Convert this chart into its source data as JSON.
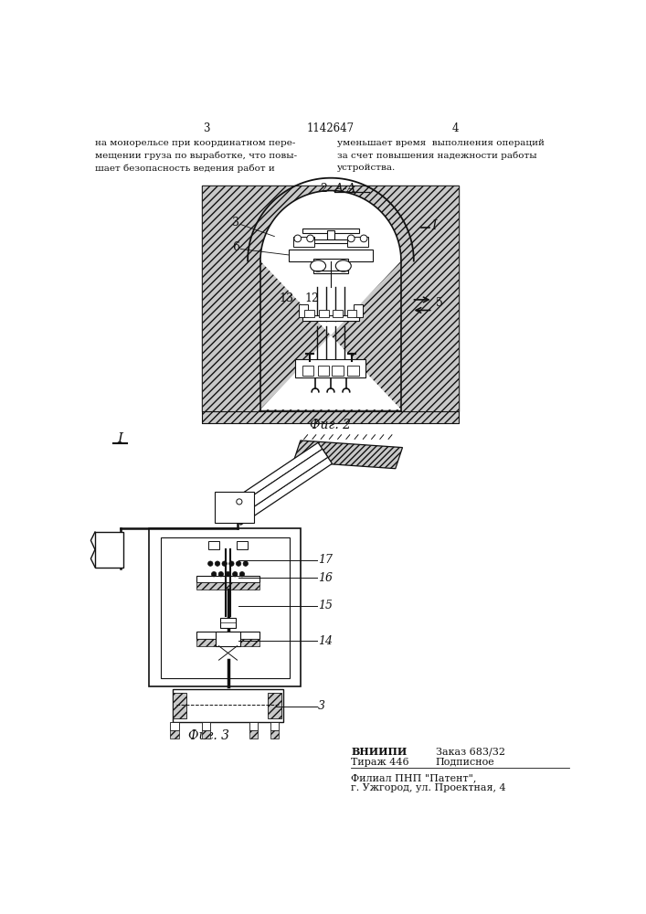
{
  "bg_color": "#ffffff",
  "page_width": 7.07,
  "page_height": 10.0,
  "header_num_left": "3",
  "header_num_center": "1142647",
  "header_num_right": "4",
  "header_left": "на монорельсе при координатном пере-\nмещении груза по выработке, что повы-\nшает безопасность ведения работ и",
  "header_right": "уменьшает время  выполнения операций\nза счет повышения надежности работы\nустройства.",
  "fig2_caption": "Фиг. 2",
  "fig3_caption": "Фиг. 3",
  "vniipi_line1a": "ВНИИПИ",
  "vniipi_line1b": "Заказ 683/32",
  "vniipi_line2a": "Тираж 446",
  "vniipi_line2b": "Подписное",
  "filial_line1": "Филиал ПНП \"Патент\",",
  "filial_line2": "г. Ужгород, ул. Проектная, 4",
  "lc": "#111111",
  "hatch_fc": "#c8c8c8"
}
